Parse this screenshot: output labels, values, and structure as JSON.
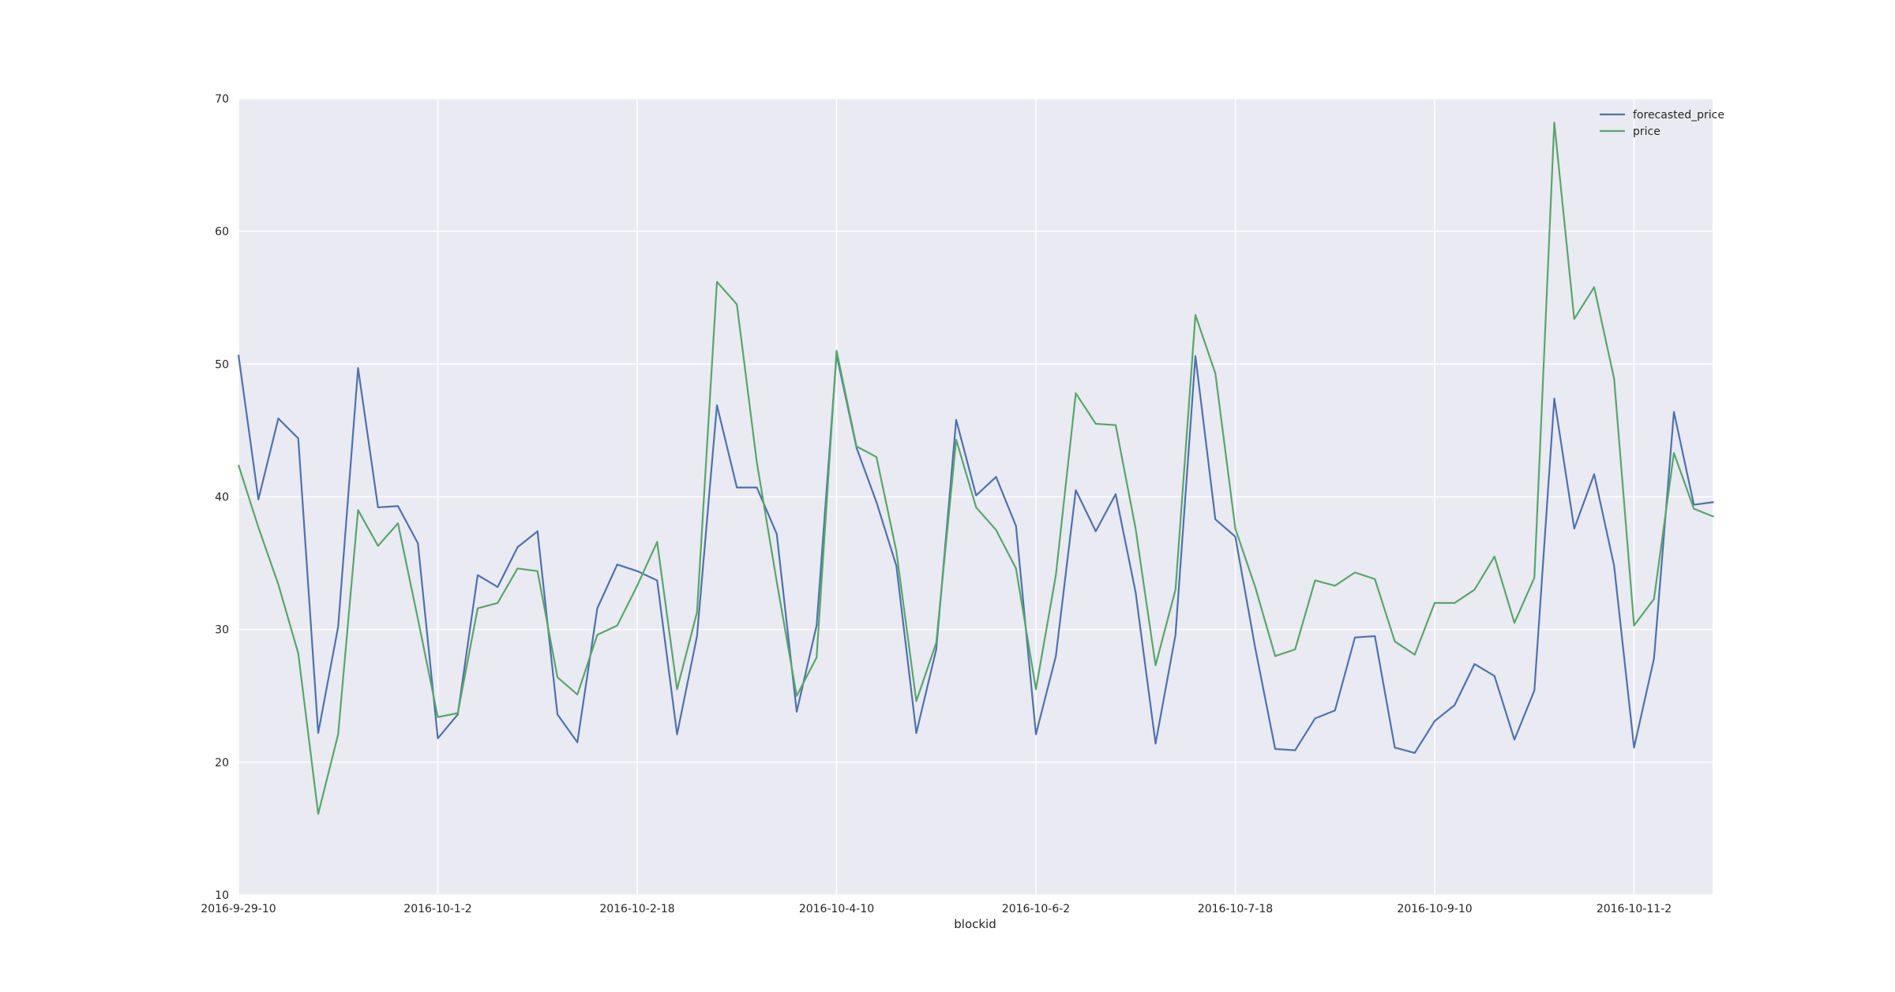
{
  "chart_data": {
    "type": "line",
    "title": "",
    "xlabel": "blockid",
    "ylabel": "",
    "ylim": [
      10,
      70
    ],
    "yticks": [
      10,
      20,
      30,
      40,
      50,
      60,
      70
    ],
    "grid": true,
    "legend_position": "top-right",
    "tick_labels": [
      {
        "index": 0,
        "label": "2016-9-29-10"
      },
      {
        "index": 10,
        "label": "2016-10-1-2"
      },
      {
        "index": 20,
        "label": "2016-10-2-18"
      },
      {
        "index": 30,
        "label": "2016-10-4-10"
      },
      {
        "index": 40,
        "label": "2016-10-6-2"
      },
      {
        "index": 50,
        "label": "2016-10-7-18"
      },
      {
        "index": 60,
        "label": "2016-10-9-10"
      },
      {
        "index": 70,
        "label": "2016-10-11-2"
      }
    ],
    "series": [
      {
        "name": "forecasted_price",
        "color": "#4c72b0",
        "values": [
          50.7,
          39.8,
          45.9,
          44.4,
          22.2,
          30.2,
          49.7,
          39.2,
          39.3,
          36.5,
          21.8,
          23.6,
          34.1,
          33.2,
          36.2,
          37.4,
          23.6,
          21.5,
          31.6,
          34.9,
          34.4,
          33.7,
          22.1,
          29.5,
          46.9,
          40.7,
          40.7,
          37.2,
          23.8,
          30.3,
          50.7,
          43.7,
          39.6,
          34.8,
          22.2,
          28.5,
          45.8,
          40.1,
          41.5,
          37.8,
          22.1,
          28.0,
          40.5,
          37.4,
          40.2,
          32.8,
          21.4,
          29.6,
          50.6,
          38.3,
          37.0,
          28.6,
          21.0,
          20.9,
          23.3,
          23.9,
          29.4,
          29.5,
          21.1,
          20.7,
          23.1,
          24.3,
          27.4,
          26.5,
          21.7,
          25.4,
          47.4,
          37.6,
          41.7,
          34.8,
          21.1,
          27.8,
          46.4,
          39.4,
          39.6
        ]
      },
      {
        "name": "price",
        "color": "#55a868",
        "values": [
          42.4,
          37.7,
          33.4,
          28.2,
          16.1,
          22.1,
          39.0,
          36.3,
          38.0,
          30.8,
          23.4,
          23.7,
          31.6,
          32.0,
          34.6,
          34.4,
          26.4,
          25.1,
          29.6,
          30.3,
          33.3,
          36.6,
          25.5,
          31.3,
          56.2,
          54.5,
          42.6,
          33.6,
          25.0,
          27.9,
          51.0,
          43.8,
          43.0,
          35.9,
          24.6,
          29.0,
          44.3,
          39.2,
          37.5,
          34.6,
          25.5,
          34.1,
          47.8,
          45.5,
          45.4,
          37.6,
          27.3,
          33.0,
          53.7,
          49.3,
          37.6,
          33.2,
          28.0,
          28.5,
          33.7,
          33.3,
          34.3,
          33.8,
          29.1,
          28.1,
          32.0,
          32.0,
          33.0,
          35.5,
          30.5,
          33.9,
          68.2,
          53.4,
          55.8,
          48.9,
          30.3,
          32.3,
          43.3,
          39.1,
          38.5
        ]
      }
    ]
  }
}
